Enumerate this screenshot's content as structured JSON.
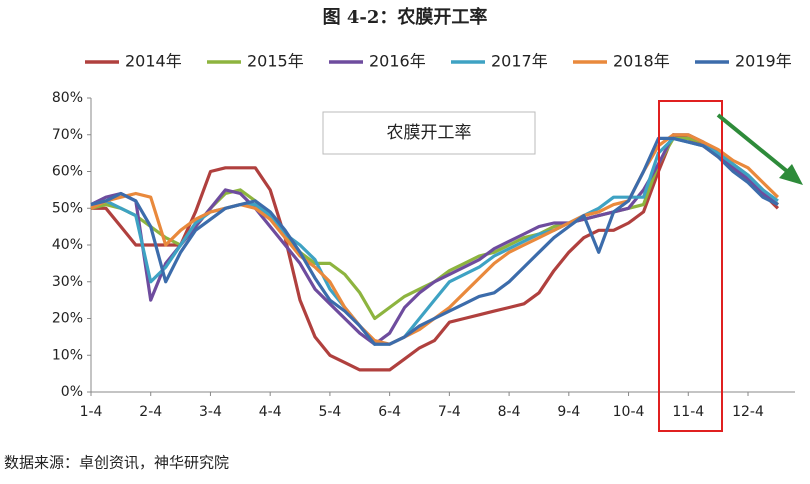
{
  "chart_data": {
    "type": "line",
    "title": "图 4-2：农膜开工率",
    "annotation": "农膜开工率",
    "source": "数据来源：卓创资讯，神华研究院",
    "categories": [
      "1-4",
      null,
      null,
      null,
      "2-4",
      null,
      null,
      null,
      "3-4",
      null,
      null,
      null,
      "4-4",
      null,
      null,
      null,
      "5-4",
      null,
      null,
      null,
      "6-4",
      null,
      null,
      null,
      "7-4",
      null,
      null,
      null,
      "8-4",
      null,
      null,
      null,
      "9-4",
      null,
      null,
      null,
      "10-4",
      null,
      null,
      null,
      "11-4",
      null,
      null,
      null,
      "12-4",
      null,
      null
    ],
    "series": [
      {
        "name": "2014年",
        "color": "#b0403e",
        "values": [
          50,
          50,
          45,
          40,
          40,
          40,
          40,
          49,
          60,
          61,
          61,
          61,
          55,
          42,
          25,
          15,
          10,
          8,
          6,
          6,
          6,
          9,
          12,
          14,
          19,
          20,
          21,
          22,
          23,
          24,
          27,
          33,
          38,
          42,
          44,
          44,
          46,
          49,
          60,
          70,
          69,
          67,
          64,
          61,
          58,
          54,
          50
        ]
      },
      {
        "name": "2015年",
        "color": "#8db43f",
        "values": [
          50,
          51,
          50,
          48,
          45,
          42,
          40,
          45,
          50,
          54,
          55,
          52,
          48,
          43,
          38,
          35,
          35,
          32,
          27,
          20,
          23,
          26,
          28,
          30,
          33,
          35,
          37,
          38,
          40,
          42,
          43,
          45,
          46,
          47,
          48,
          49,
          50,
          51,
          62,
          69,
          69,
          68,
          65,
          62,
          59,
          55,
          51
        ]
      },
      {
        "name": "2016年",
        "color": "#6e4c9e",
        "values": [
          51,
          53,
          54,
          52,
          25,
          35,
          40,
          45,
          50,
          55,
          54,
          50,
          45,
          40,
          35,
          28,
          24,
          20,
          16,
          13,
          16,
          23,
          27,
          30,
          32,
          34,
          36,
          39,
          41,
          43,
          45,
          46,
          46,
          47,
          48,
          49,
          50,
          55,
          62,
          70,
          70,
          68,
          65,
          61,
          58,
          54,
          51
        ]
      },
      {
        "name": "2017年",
        "color": "#3ea2c3",
        "values": [
          51,
          52,
          50,
          48,
          30,
          34,
          40,
          46,
          49,
          50,
          51,
          51,
          48,
          43,
          40,
          36,
          28,
          23,
          18,
          13,
          13,
          15,
          20,
          25,
          30,
          32,
          34,
          37,
          39,
          41,
          43,
          44,
          46,
          48,
          50,
          53,
          53,
          53,
          65,
          69,
          68,
          67,
          65,
          62,
          59,
          55,
          52
        ]
      },
      {
        "name": "2018年",
        "color": "#e9893c",
        "values": [
          50,
          52,
          53,
          54,
          53,
          40,
          44,
          47,
          49,
          50,
          51,
          50,
          47,
          42,
          37,
          34,
          30,
          23,
          18,
          14,
          13,
          15,
          17,
          20,
          23,
          27,
          31,
          35,
          38,
          40,
          42,
          44,
          46,
          48,
          49,
          51,
          52,
          60,
          67,
          70,
          70,
          68,
          66,
          63,
          61,
          57,
          53
        ]
      },
      {
        "name": "2019年",
        "color": "#3c6cab",
        "values": [
          51,
          52,
          54,
          52,
          45,
          30,
          38,
          44,
          47,
          50,
          51,
          52,
          49,
          44,
          38,
          31,
          25,
          22,
          18,
          13,
          13,
          15,
          18,
          20,
          22,
          24,
          26,
          27,
          30,
          34,
          38,
          42,
          45,
          48,
          38,
          49,
          52,
          60,
          69,
          69,
          68,
          67,
          64,
          60,
          57,
          53,
          51
        ]
      }
    ],
    "ylim": [
      0,
      80
    ],
    "yticks": [
      {
        "value": 0,
        "label": "0%"
      },
      {
        "value": 10,
        "label": "10%"
      },
      {
        "value": 20,
        "label": "20%"
      },
      {
        "value": 30,
        "label": "30%"
      },
      {
        "value": 40,
        "label": "40%"
      },
      {
        "value": 50,
        "label": "50%"
      },
      {
        "value": 60,
        "label": "60%"
      },
      {
        "value": 70,
        "label": "70%"
      },
      {
        "value": 80,
        "label": "80%"
      }
    ],
    "grid": false
  }
}
